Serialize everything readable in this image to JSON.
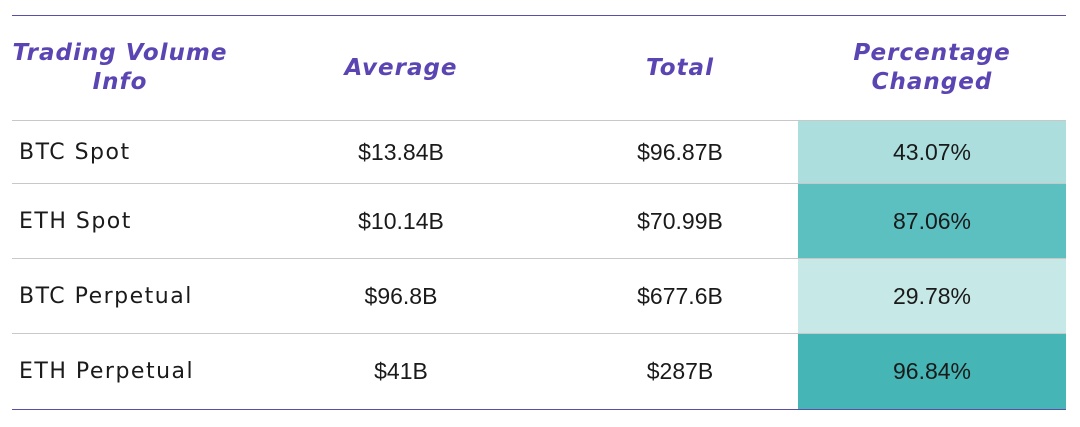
{
  "chart_data": {
    "type": "table",
    "columns": [
      "Trading Volume Info",
      "Average",
      "Total",
      "Percentage Changed"
    ],
    "rows": [
      {
        "name": "BTC Spot",
        "average": "$13.84B",
        "total": "$96.87B",
        "pct": "43.07%",
        "pct_value": 43.07,
        "color": "#abdedd"
      },
      {
        "name": "ETH Spot",
        "average": "$10.14B",
        "total": "$70.99B",
        "pct": "87.06%",
        "pct_value": 87.06,
        "color": "#5cbfc0"
      },
      {
        "name": "BTC Perpetual",
        "average": "$96.8B",
        "total": "$677.6B",
        "pct": "29.78%",
        "pct_value": 29.78,
        "color": "#c6e9e8"
      },
      {
        "name": "ETH Perpetual",
        "average": "$41B",
        "total": "$287B",
        "pct": "96.84%",
        "pct_value": 96.84,
        "color": "#46b5b5"
      }
    ]
  },
  "colors": {
    "header_text": "#5b45b3",
    "rule": "#5a4fa8"
  }
}
